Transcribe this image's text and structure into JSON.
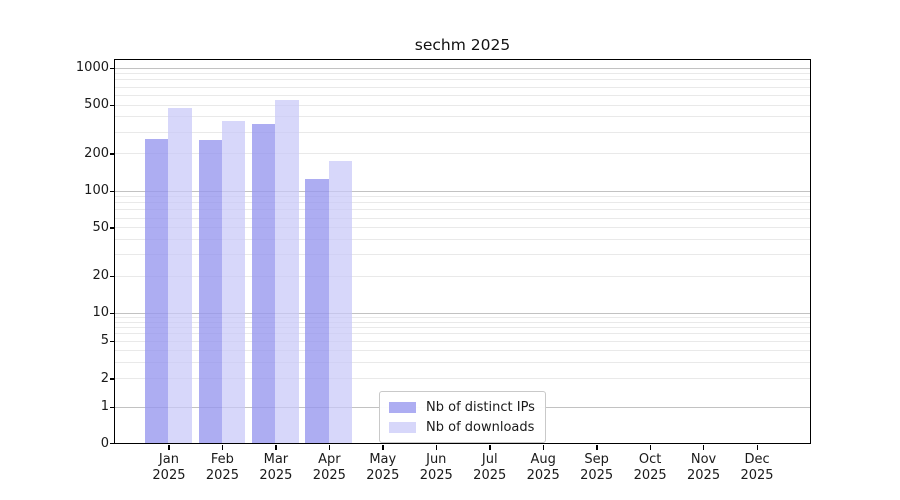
{
  "figure": {
    "title": "sechm 2025"
  },
  "chart_data": {
    "type": "bar",
    "title": "sechm 2025",
    "categories": [
      "Jan",
      "Feb",
      "Mar",
      "Apr",
      "May",
      "Jun",
      "Jul",
      "Aug",
      "Sep",
      "Oct",
      "Nov",
      "Dec"
    ],
    "category_year": "2025",
    "series": [
      {
        "name": "Nb of distinct IPs",
        "color": "#9696ee",
        "alpha": 0.78,
        "values": [
          260,
          255,
          345,
          125,
          null,
          null,
          null,
          null,
          null,
          null,
          null,
          null
        ]
      },
      {
        "name": "Nb of downloads",
        "color": "#c8c8f8",
        "alpha": 0.72,
        "values": [
          470,
          365,
          540,
          175,
          null,
          null,
          null,
          null,
          null,
          null,
          null,
          null
        ]
      }
    ],
    "xlabel": "",
    "ylabel": "",
    "yscale": "symlog",
    "ylim": [
      0,
      1000
    ],
    "yticks": [
      0,
      1,
      2,
      5,
      10,
      20,
      50,
      100,
      200,
      500,
      1000
    ],
    "grid": "both",
    "legend_position": "lower-center-inside"
  }
}
